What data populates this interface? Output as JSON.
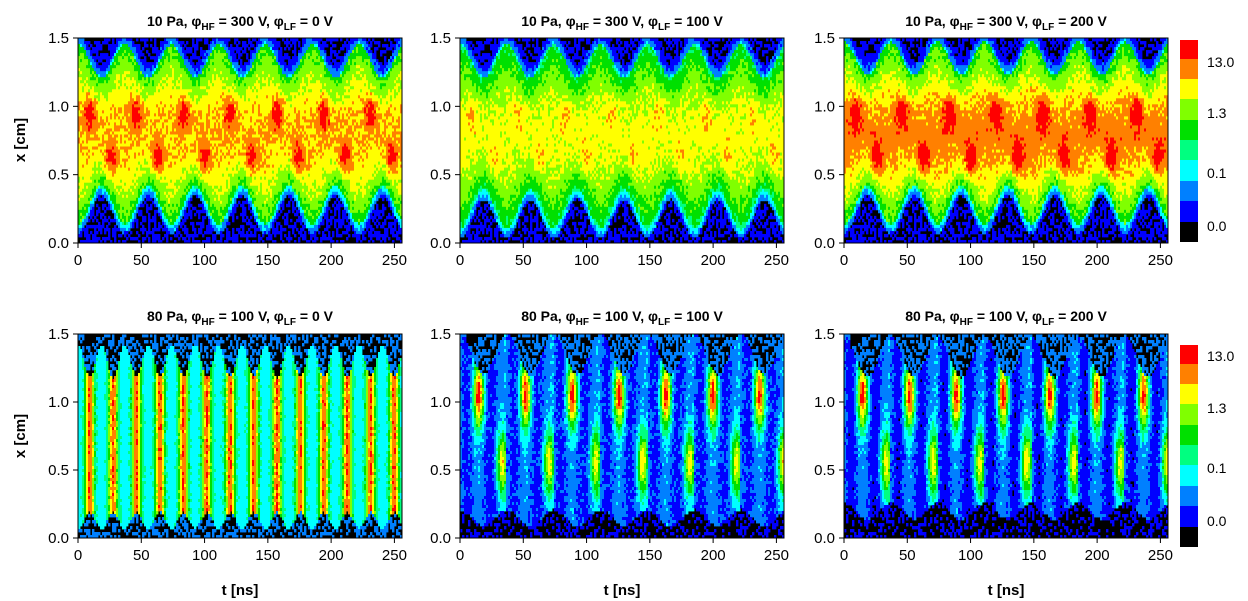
{
  "figure": {
    "panels": [
      {
        "title_pressure": "10 Pa, ",
        "title_hf_sym": "φ",
        "title_hf_sub": "HF",
        "title_hf_val": " = 300 V, ",
        "title_lf_sym": "φ",
        "title_lf_sub": "LF",
        "title_lf_val": " = 0 V"
      },
      {
        "title_pressure": "10 Pa, ",
        "title_hf_sym": "φ",
        "title_hf_sub": "HF",
        "title_hf_val": " = 300 V, ",
        "title_lf_sym": "φ",
        "title_lf_sub": "LF",
        "title_lf_val": " = 100 V"
      },
      {
        "title_pressure": "10 Pa, ",
        "title_hf_sym": "φ",
        "title_hf_sub": "HF",
        "title_hf_val": " = 300 V, ",
        "title_lf_sym": "φ",
        "title_lf_sub": "LF",
        "title_lf_val": " = 200 V"
      },
      {
        "title_pressure": "80 Pa, ",
        "title_hf_sym": "φ",
        "title_hf_sub": "HF",
        "title_hf_val": " = 100 V, ",
        "title_lf_sym": "φ",
        "title_lf_sub": "LF",
        "title_lf_val": " = 0 V"
      },
      {
        "title_pressure": "80 Pa, ",
        "title_hf_sym": "φ",
        "title_hf_sub": "HF",
        "title_hf_val": " = 100 V, ",
        "title_lf_sym": "φ",
        "title_lf_sub": "LF",
        "title_lf_val": " = 100 V"
      },
      {
        "title_pressure": "80 Pa, ",
        "title_hf_sym": "φ",
        "title_hf_sub": "HF",
        "title_hf_val": " = 100 V, ",
        "title_lf_sym": "φ",
        "title_lf_sub": "LF",
        "title_lf_val": " = 200 V"
      }
    ],
    "ylabel_top": "x [cm]",
    "ylabel_bottom": "x [cm]",
    "xlabels_bottom": [
      "t [ns]",
      "t [ns]",
      "t [ns]"
    ],
    "colorbar_top": [
      "13.0",
      "1.3",
      "0.1",
      "0.0"
    ],
    "colorbar_bottom": [
      "13.0",
      "1.3",
      "0.1",
      "0.0"
    ]
  },
  "colors": {
    "levels": [
      "#000000",
      "#0000ff",
      "#0080ff",
      "#00ffff",
      "#00ff80",
      "#00e000",
      "#80ff00",
      "#ffff00",
      "#ff8000",
      "#ff0000"
    ]
  },
  "chart_data": [
    {
      "type": "heatmap",
      "pressure_pa": 10,
      "phi_hf_v": 300,
      "phi_lf_v": 0,
      "xlabel": "",
      "ylabel": "x [cm]",
      "xlim": [
        0,
        256
      ],
      "ylim": [
        0.0,
        1.5
      ],
      "xticks": [
        0,
        50,
        100,
        150,
        200,
        250
      ],
      "yticks": [
        0.0,
        0.5,
        1.0,
        1.5
      ],
      "period_ns": 37,
      "colorbar_ticks": [
        13.0,
        1.3,
        0.1,
        0.0
      ]
    },
    {
      "type": "heatmap",
      "pressure_pa": 10,
      "phi_hf_v": 300,
      "phi_lf_v": 100,
      "xlabel": "",
      "ylabel": "",
      "xlim": [
        0,
        256
      ],
      "ylim": [
        0.0,
        1.5
      ],
      "xticks": [
        0,
        50,
        100,
        150,
        200,
        250
      ],
      "yticks": [
        0.0,
        0.5,
        1.0,
        1.5
      ],
      "period_ns": 37,
      "colorbar_ticks": [
        13.0,
        1.3,
        0.1,
        0.0
      ]
    },
    {
      "type": "heatmap",
      "pressure_pa": 10,
      "phi_hf_v": 300,
      "phi_lf_v": 200,
      "xlabel": "",
      "ylabel": "",
      "xlim": [
        0,
        256
      ],
      "ylim": [
        0.0,
        1.5
      ],
      "xticks": [
        0,
        50,
        100,
        150,
        200,
        250
      ],
      "yticks": [
        0.0,
        0.5,
        1.0,
        1.5
      ],
      "period_ns": 37,
      "colorbar_ticks": [
        13.0,
        1.3,
        0.1,
        0.0
      ]
    },
    {
      "type": "heatmap",
      "pressure_pa": 80,
      "phi_hf_v": 100,
      "phi_lf_v": 0,
      "xlabel": "t [ns]",
      "ylabel": "x [cm]",
      "xlim": [
        0,
        256
      ],
      "ylim": [
        0.0,
        1.5
      ],
      "xticks": [
        0,
        50,
        100,
        150,
        200,
        250
      ],
      "yticks": [
        0.0,
        0.5,
        1.0,
        1.5
      ],
      "period_ns": 37,
      "colorbar_ticks": [
        13.0,
        1.3,
        0.1,
        0.0
      ]
    },
    {
      "type": "heatmap",
      "pressure_pa": 80,
      "phi_hf_v": 100,
      "phi_lf_v": 100,
      "xlabel": "t [ns]",
      "ylabel": "",
      "xlim": [
        0,
        256
      ],
      "ylim": [
        0.0,
        1.5
      ],
      "xticks": [
        0,
        50,
        100,
        150,
        200,
        250
      ],
      "yticks": [
        0.0,
        0.5,
        1.0,
        1.5
      ],
      "period_ns": 37,
      "colorbar_ticks": [
        13.0,
        1.3,
        0.1,
        0.0
      ]
    },
    {
      "type": "heatmap",
      "pressure_pa": 80,
      "phi_hf_v": 100,
      "phi_lf_v": 200,
      "xlabel": "t [ns]",
      "ylabel": "",
      "xlim": [
        0,
        256
      ],
      "ylim": [
        0.0,
        1.5
      ],
      "xticks": [
        0,
        50,
        100,
        150,
        200,
        250
      ],
      "yticks": [
        0.0,
        0.5,
        1.0,
        1.5
      ],
      "period_ns": 37,
      "colorbar_ticks": [
        13.0,
        1.3,
        0.1,
        0.0
      ]
    }
  ]
}
